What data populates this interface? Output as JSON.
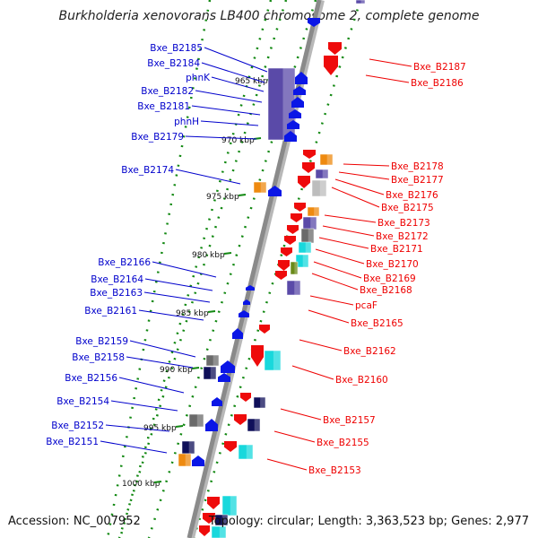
{
  "title": "Burkholderia xenovorans LB400 chromosome 2, complete genome",
  "footer": {
    "accession": "Accession: NC_007952",
    "topology": "Topology: circular; Length: 3,363,523 bp; Genes: 2,977"
  },
  "colors": {
    "left_label": "#0000cc",
    "right_label": "#ee0000",
    "tick_green": "#118811",
    "backbone": "#8a8a8a",
    "blue_gene": "#0a16e6",
    "red_gene": "#ee0b0b",
    "purple_gene": "#5a4aa8",
    "orange_gene": "#ee8a10",
    "cyan_gene": "#18d8dc",
    "navy_gene": "#10105a",
    "gray_gene": "#6a6a6a",
    "olive_gene": "#6a8a1a"
  },
  "scale_labels": [
    "965 kbp",
    "970 kbp",
    "975 kbp",
    "980 kbp",
    "985 kbp",
    "990 kbp",
    "995 kbp",
    "1000 kbp"
  ],
  "left_labels": [
    "Bxe_B2185",
    "Bxe_B2184",
    "phnK",
    "Bxe_B2182",
    "Bxe_B2181",
    "phnH",
    "Bxe_B2179",
    "Bxe_B2174",
    "Bxe_B2166",
    "Bxe_B2164",
    "Bxe_B2163",
    "Bxe_B2161",
    "Bxe_B2159",
    "Bxe_B2158",
    "Bxe_B2156",
    "Bxe_B2154",
    "Bxe_B2152",
    "Bxe_B2151"
  ],
  "right_labels": [
    "Bxe_B2187",
    "Bxe_B2186",
    "Bxe_B2178",
    "Bxe_B2177",
    "Bxe_B2176",
    "Bxe_B2175",
    "Bxe_B2173",
    "Bxe_B2172",
    "Bxe_B2171",
    "Bxe_B2170",
    "Bxe_B2169",
    "Bxe_B2168",
    "pcaF",
    "Bxe_B2165",
    "Bxe_B2162",
    "Bxe_B2160",
    "Bxe_B2157",
    "Bxe_B2155",
    "Bxe_B2153"
  ]
}
